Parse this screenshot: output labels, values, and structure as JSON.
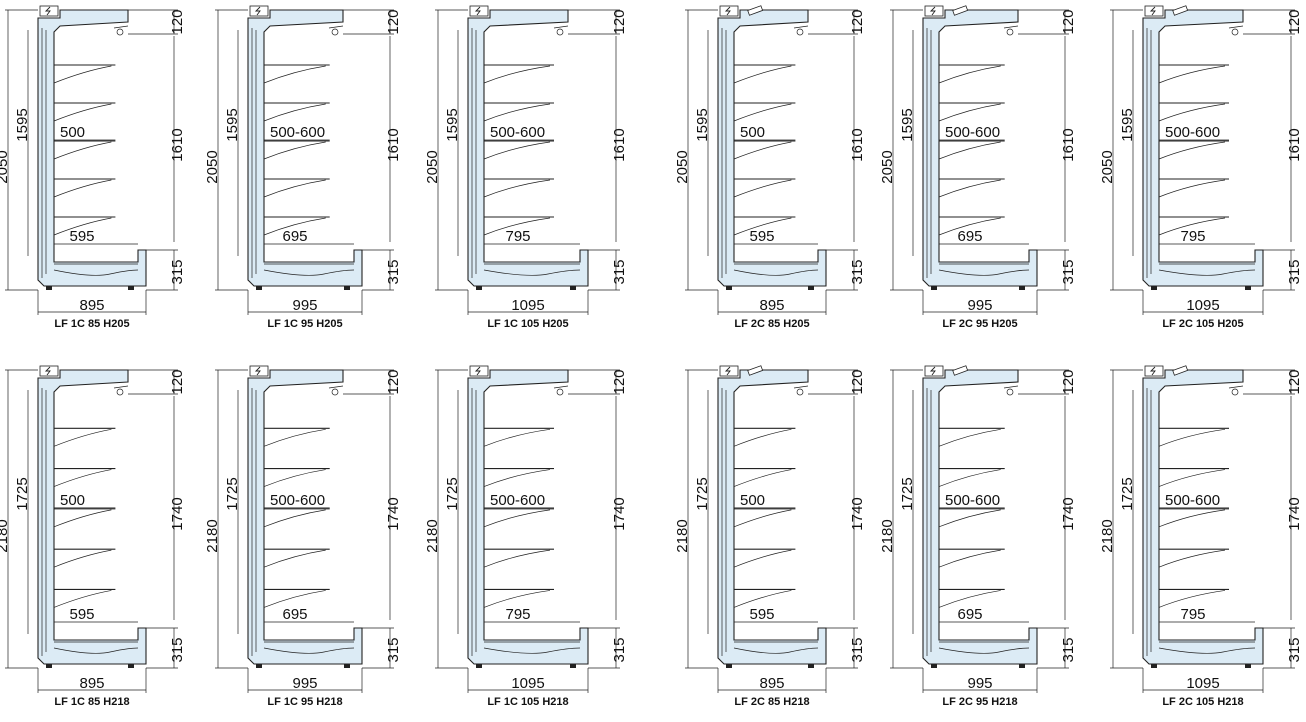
{
  "colors": {
    "cabinet_fill": "#dcebf5",
    "line": "#222222",
    "background": "#ffffff"
  },
  "icons": {
    "electrical_box": "lightning-bolt-icon"
  },
  "cabinets": [
    {
      "model": "LF 1C 85 H205",
      "height": "2050",
      "inner_height": "1595",
      "shelf_depth": "500",
      "opening": "1610",
      "depth": "895",
      "base_depth": "595",
      "canopy": "120",
      "base": "315",
      "shelves": 5,
      "lights": 1,
      "width_scale": 0.9,
      "height_scale": 1.0
    },
    {
      "model": "LF 1C 95 H205",
      "height": "2050",
      "inner_height": "1595",
      "shelf_depth": "500-600",
      "opening": "1610",
      "depth": "995",
      "base_depth": "695",
      "canopy": "120",
      "base": "315",
      "shelves": 5,
      "lights": 1,
      "width_scale": 0.95,
      "height_scale": 1.0
    },
    {
      "model": "LF 1C 105 H205",
      "height": "2050",
      "inner_height": "1595",
      "shelf_depth": "500-600",
      "opening": "1610",
      "depth": "1095",
      "base_depth": "795",
      "canopy": "120",
      "base": "315",
      "shelves": 5,
      "lights": 1,
      "width_scale": 1.0,
      "height_scale": 1.0
    },
    {
      "model": "LF 2C 85 H205",
      "height": "2050",
      "inner_height": "1595",
      "shelf_depth": "500",
      "opening": "1610",
      "depth": "895",
      "base_depth": "595",
      "canopy": "120",
      "base": "315",
      "shelves": 5,
      "lights": 2,
      "width_scale": 0.9,
      "height_scale": 1.0
    },
    {
      "model": "LF 2C 95 H205",
      "height": "2050",
      "inner_height": "1595",
      "shelf_depth": "500-600",
      "opening": "1610",
      "depth": "995",
      "base_depth": "695",
      "canopy": "120",
      "base": "315",
      "shelves": 5,
      "lights": 2,
      "width_scale": 0.95,
      "height_scale": 1.0
    },
    {
      "model": "LF 2C 105 H205",
      "height": "2050",
      "inner_height": "1595",
      "shelf_depth": "500-600",
      "opening": "1610",
      "depth": "1095",
      "base_depth": "795",
      "canopy": "120",
      "base": "315",
      "shelves": 5,
      "lights": 2,
      "width_scale": 1.0,
      "height_scale": 1.0
    },
    {
      "model": "LF 1C 85 H218",
      "height": "2180",
      "inner_height": "1725",
      "shelf_depth": "500",
      "opening": "1740",
      "depth": "895",
      "base_depth": "595",
      "canopy": "120",
      "base": "315",
      "shelves": 5,
      "lights": 1,
      "width_scale": 0.9,
      "height_scale": 1.06
    },
    {
      "model": "LF 1C 95 H218",
      "height": "2180",
      "inner_height": "1725",
      "shelf_depth": "500-600",
      "opening": "1740",
      "depth": "995",
      "base_depth": "695",
      "canopy": "120",
      "base": "315",
      "shelves": 5,
      "lights": 1,
      "width_scale": 0.95,
      "height_scale": 1.06
    },
    {
      "model": "LF 1C 105 H218",
      "height": "2180",
      "inner_height": "1725",
      "shelf_depth": "500-600",
      "opening": "1740",
      "depth": "1095",
      "base_depth": "795",
      "canopy": "120",
      "base": "315",
      "shelves": 5,
      "lights": 1,
      "width_scale": 1.0,
      "height_scale": 1.06
    },
    {
      "model": "LF 2C 85 H218",
      "height": "2180",
      "inner_height": "1725",
      "shelf_depth": "500",
      "opening": "1740",
      "depth": "895",
      "base_depth": "595",
      "canopy": "120",
      "base": "315",
      "shelves": 5,
      "lights": 2,
      "width_scale": 0.9,
      "height_scale": 1.06
    },
    {
      "model": "LF 2C 95 H218",
      "height": "2180",
      "inner_height": "1725",
      "shelf_depth": "500-600",
      "opening": "1740",
      "depth": "995",
      "base_depth": "695",
      "canopy": "120",
      "base": "315",
      "shelves": 5,
      "lights": 2,
      "width_scale": 0.95,
      "height_scale": 1.06
    },
    {
      "model": "LF 2C 105 H218",
      "height": "2180",
      "inner_height": "1725",
      "shelf_depth": "500-600",
      "opening": "1740",
      "depth": "1095",
      "base_depth": "795",
      "canopy": "120",
      "base": "315",
      "shelves": 5,
      "lights": 2,
      "width_scale": 1.0,
      "height_scale": 1.06
    }
  ]
}
